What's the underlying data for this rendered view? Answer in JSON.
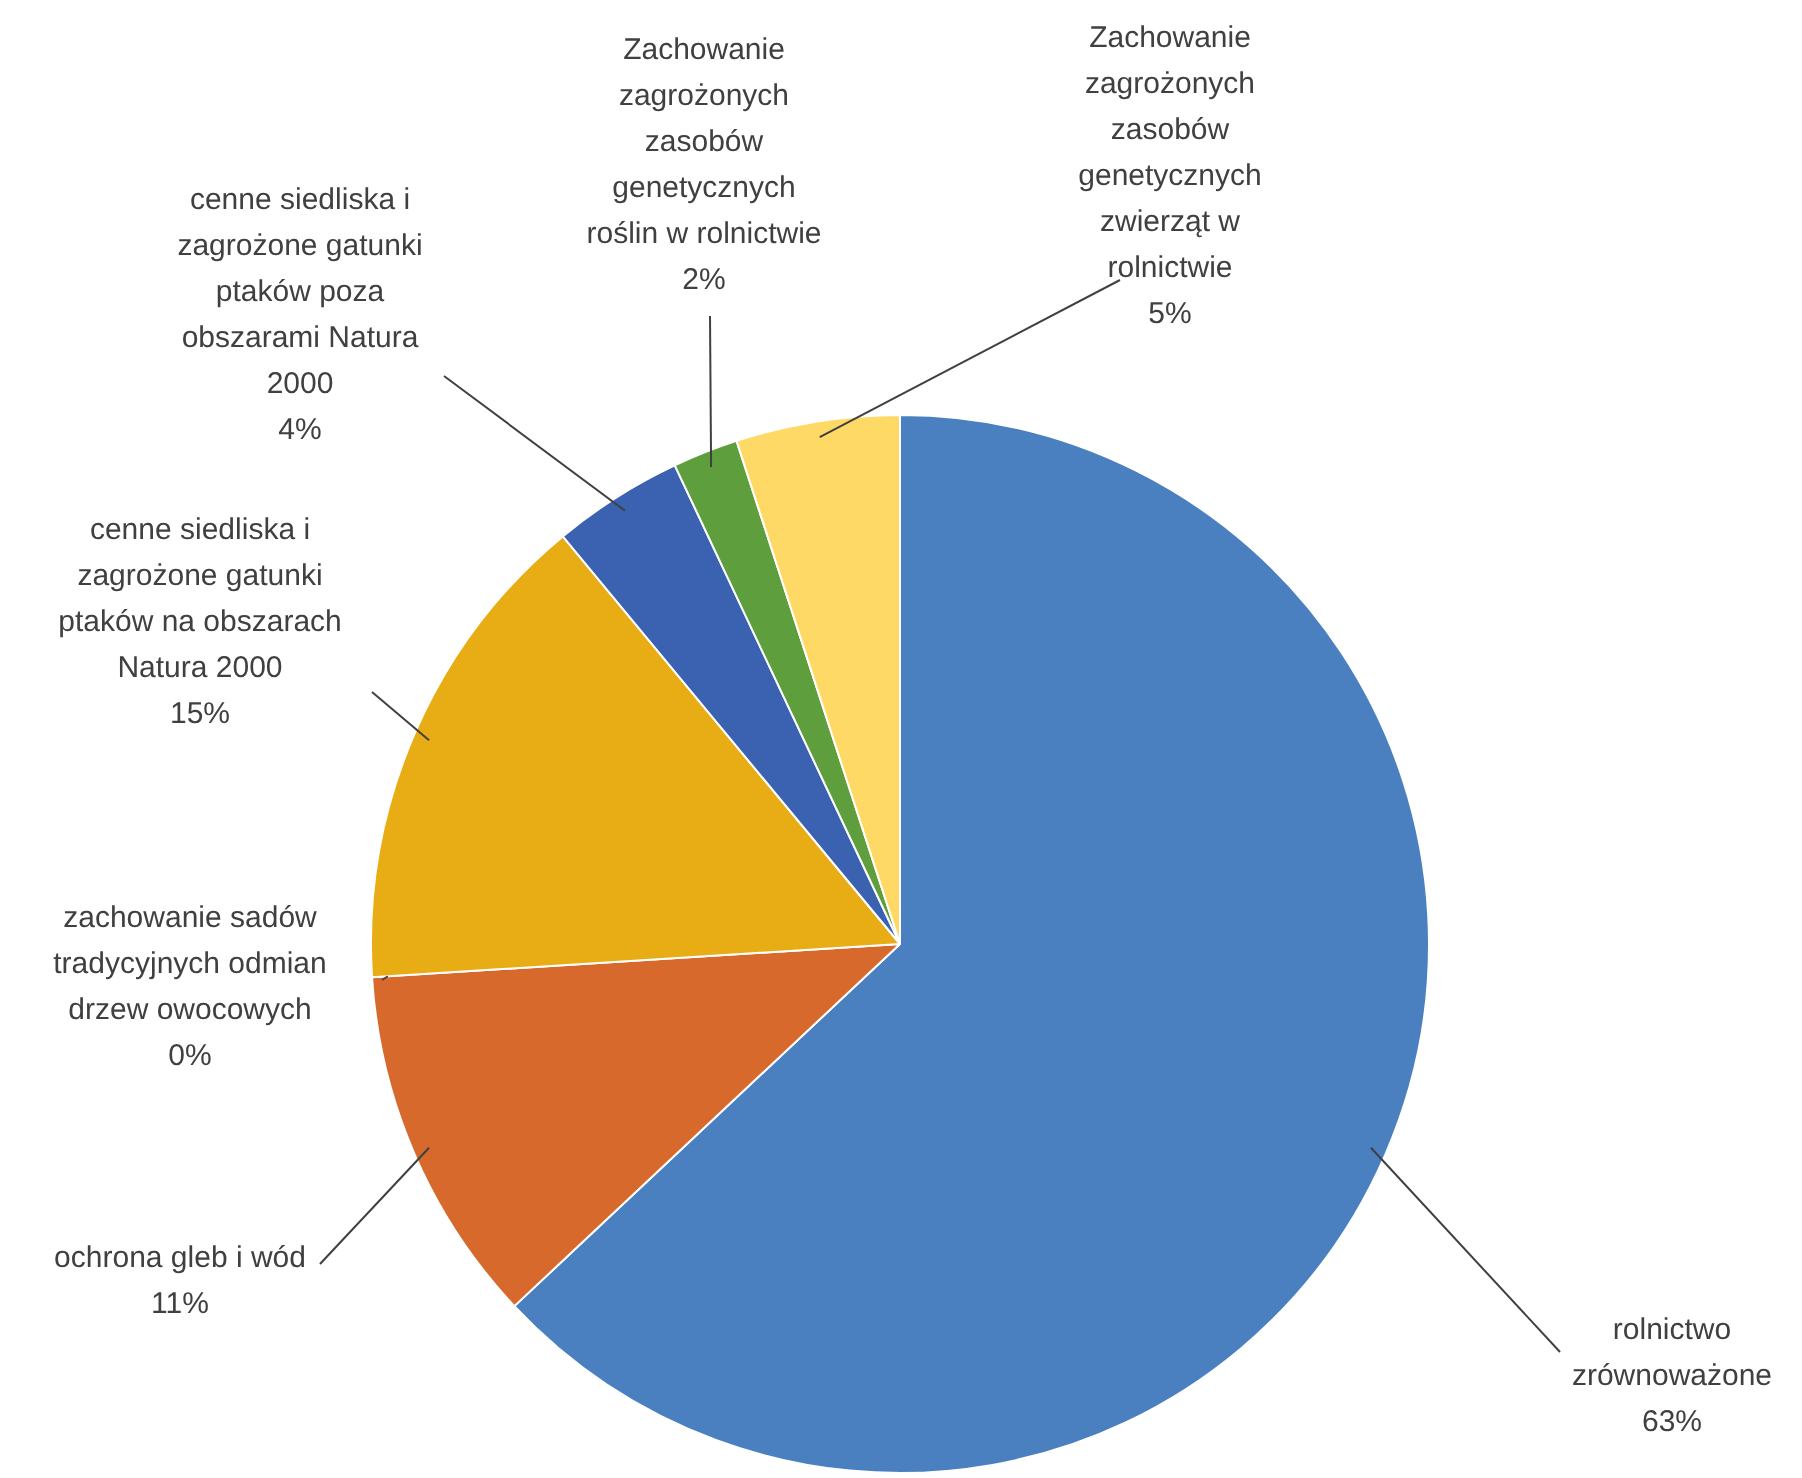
{
  "chart_data": {
    "type": "pie",
    "categories": [
      "rolnictwo zrównoważone",
      "ochrona gleb i wód",
      "zachowanie sadów tradycyjnych odmian drzew owocowych",
      "cenne siedliska i zagrożone gatunki ptaków na obszarach Natura 2000",
      "cenne siedliska i zagrożone gatunki ptaków poza obszarami Natura 2000",
      "Zachowanie zagrożonych zasobów genetycznych roślin w rolnictwie",
      "Zachowanie zagrożonych zasobów genetycznych zwierząt w rolnictwie"
    ],
    "values": [
      63,
      11,
      0,
      15,
      4,
      2,
      5
    ],
    "value_labels": [
      "63%",
      "11%",
      "0%",
      "15%",
      "4%",
      "2%",
      "5%"
    ],
    "colors": [
      "#4a80c0",
      "#d8692c",
      "#a5a5a5",
      "#e8ac14",
      "#3a62b0",
      "#5e9e3c",
      "#ffd966"
    ]
  }
}
